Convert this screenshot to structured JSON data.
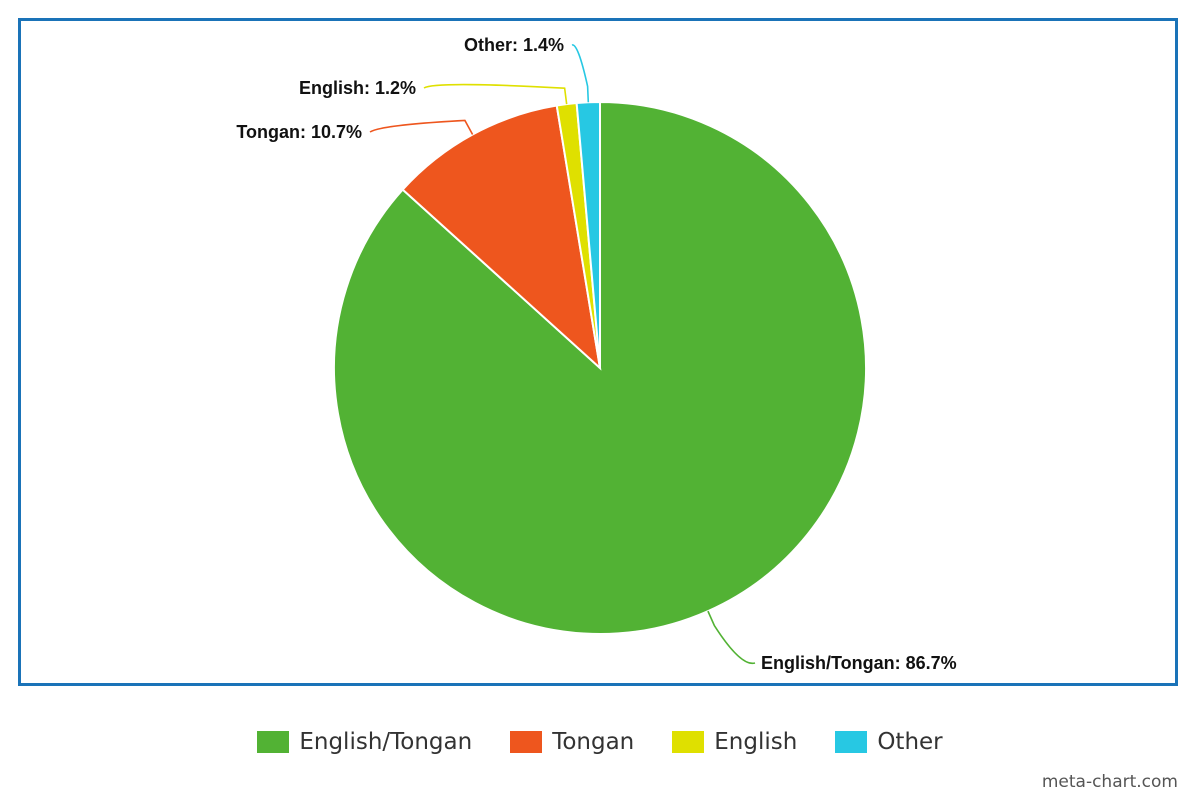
{
  "chart_data": {
    "type": "pie",
    "title": "",
    "categories": [
      "English/Tongan",
      "Tongan",
      "English",
      "Other"
    ],
    "values": [
      86.7,
      10.7,
      1.2,
      1.4
    ],
    "labels": [
      "English/Tongan: 86.7%",
      "Tongan: 10.7%",
      "English: 1.2%",
      "Other: 1.4%"
    ],
    "colors": [
      "#52b234",
      "#ee561e",
      "#dfe000",
      "#27c8e3"
    ],
    "legend": "bottom-center",
    "start_angle_deg": 0,
    "direction": "clockwise-from-top"
  },
  "legend": {
    "items": [
      {
        "label": "English/Tongan",
        "color": "#52b234"
      },
      {
        "label": "Tongan",
        "color": "#ee561e"
      },
      {
        "label": "English",
        "color": "#dfe000"
      },
      {
        "label": "Other",
        "color": "#27c8e3"
      }
    ]
  },
  "credit": "meta-chart.com"
}
